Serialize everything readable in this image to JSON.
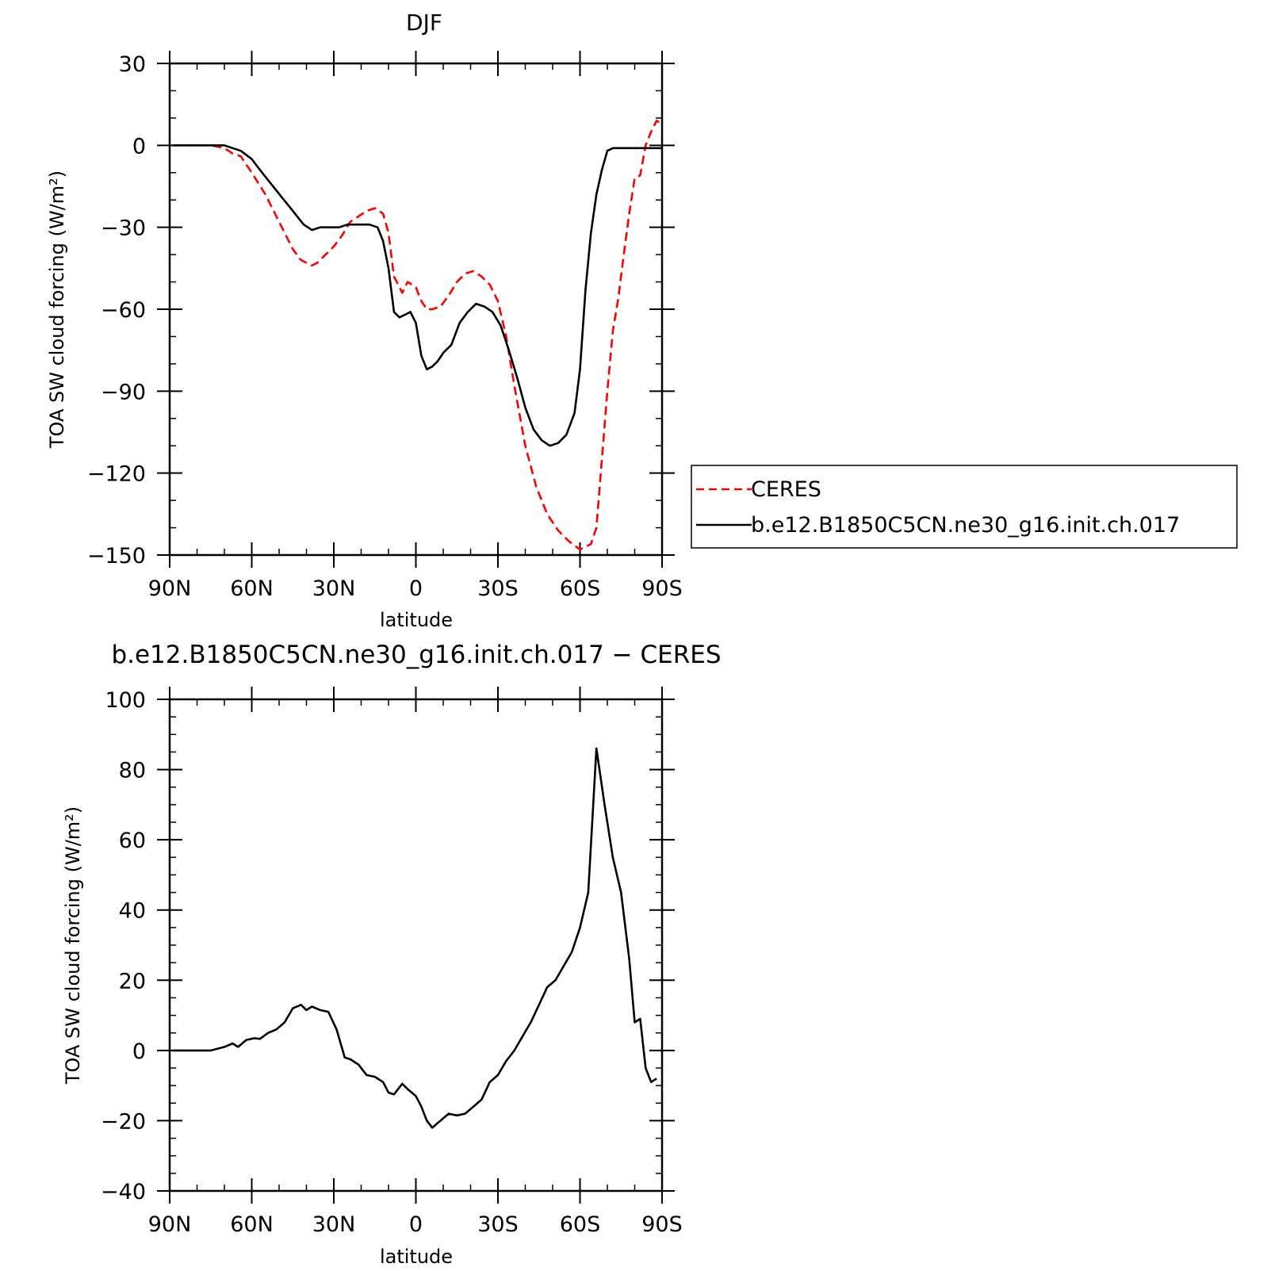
{
  "chart_data": [
    {
      "type": "line",
      "title": "DJF",
      "xlabel": "latitude",
      "ylabel": "TOA SW cloud forcing (W/m²)",
      "xlim": [
        90,
        -90
      ],
      "ylim": [
        -150,
        30
      ],
      "yticks": [
        30,
        0,
        -30,
        -60,
        -90,
        -120,
        -150
      ],
      "xticks": [
        90,
        60,
        30,
        0,
        -30,
        -60,
        -90
      ],
      "xticklabels": [
        "90N",
        "60N",
        "30N",
        "0",
        "30S",
        "60S",
        "90S"
      ],
      "legend": {
        "placement": "right",
        "entries": [
          "CERES",
          "b.e12.B1850C5CN.ne30_g16.init.ch.017"
        ]
      },
      "series": [
        {
          "name": "CERES",
          "color": "#ff0000",
          "style": "dashed",
          "x": [
            89,
            85,
            80,
            75,
            70,
            67,
            64,
            60,
            55,
            50,
            45,
            42,
            38,
            36,
            33,
            30,
            27,
            24,
            21,
            18,
            15,
            12,
            10,
            8,
            5,
            3,
            0,
            -2,
            -4,
            -6,
            -9,
            -12,
            -15,
            -18,
            -21,
            -24,
            -27,
            -30,
            -33,
            -36,
            -40,
            -44,
            -48,
            -52,
            -56,
            -60,
            -64,
            -66,
            -68,
            -70,
            -72,
            -74,
            -76,
            -78,
            -80,
            -82,
            -84,
            -86,
            -88,
            -90
          ],
          "y": [
            0,
            0,
            0,
            0,
            -1,
            -3,
            -4,
            -10,
            -18,
            -28,
            -38,
            -42,
            -44,
            -43,
            -40,
            -37,
            -33,
            -28,
            -26,
            -24,
            -23,
            -25,
            -32,
            -48,
            -54,
            -50,
            -52,
            -57,
            -60,
            -60,
            -59,
            -55,
            -50,
            -47,
            -46,
            -48,
            -51,
            -57,
            -70,
            -88,
            -110,
            -125,
            -135,
            -141,
            -145,
            -148,
            -146,
            -140,
            -115,
            -90,
            -68,
            -56,
            -40,
            -25,
            -12,
            -11,
            0,
            5,
            9,
            8
          ]
        },
        {
          "name": "b.e12.B1850C5CN.ne30_g16.init.ch.017",
          "color": "#000000",
          "style": "solid",
          "x": [
            89,
            85,
            80,
            75,
            70,
            67,
            64,
            60,
            57,
            53,
            49,
            45,
            41,
            38,
            35,
            32,
            28,
            25,
            22,
            20,
            17,
            14,
            12,
            10,
            8,
            6,
            4,
            2,
            0,
            -2,
            -4,
            -6,
            -8,
            -10,
            -13,
            -16,
            -19,
            -22,
            -25,
            -28,
            -31,
            -34,
            -37,
            -40,
            -43,
            -46,
            -49,
            -52,
            -55,
            -58,
            -60,
            -62,
            -64,
            -66,
            -68,
            -70,
            -72,
            -74,
            -76,
            -78,
            -80,
            -84,
            -88,
            -90
          ],
          "y": [
            0,
            0,
            0,
            0,
            0,
            -1,
            -2,
            -5,
            -9,
            -14,
            -19,
            -24,
            -29,
            -31,
            -30,
            -30,
            -30,
            -29,
            -29,
            -29,
            -29,
            -30,
            -35,
            -45,
            -61,
            -63,
            -62,
            -61,
            -65,
            -77,
            -82,
            -81,
            -79,
            -76,
            -73,
            -65,
            -61,
            -58,
            -59,
            -61,
            -66,
            -75,
            -85,
            -96,
            -104,
            -108,
            -110,
            -109,
            -106,
            -98,
            -82,
            -53,
            -32,
            -18,
            -9,
            -2,
            -1,
            -1,
            -1,
            -1,
            -1,
            -1,
            -1,
            -1
          ]
        }
      ]
    },
    {
      "type": "line",
      "title": "b.e12.B1850C5CN.ne30_g16.init.ch.017 − CERES",
      "xlabel": "latitude",
      "ylabel": "TOA SW cloud forcing (W/m²)",
      "xlim": [
        90,
        -90
      ],
      "ylim": [
        -40,
        100
      ],
      "yticks": [
        100,
        80,
        60,
        40,
        20,
        0,
        -20,
        -40
      ],
      "xticks": [
        90,
        60,
        30,
        0,
        -30,
        -60,
        -90
      ],
      "xticklabels": [
        "90N",
        "60N",
        "30N",
        "0",
        "30S",
        "60S",
        "90S"
      ],
      "series": [
        {
          "color": "#000000",
          "style": "solid",
          "x": [
            89,
            85,
            80,
            75,
            70,
            67,
            65,
            62,
            59,
            57,
            54,
            51,
            48,
            45,
            42,
            40,
            38,
            35,
            32,
            29,
            26,
            24,
            21,
            18,
            15,
            12,
            10,
            8,
            5,
            3,
            0,
            -2,
            -4,
            -6,
            -9,
            -12,
            -15,
            -18,
            -21,
            -24,
            -27,
            -30,
            -33,
            -36,
            -39,
            -42,
            -45,
            -48,
            -51,
            -54,
            -57,
            -60,
            -63,
            -66,
            -69,
            -72,
            -75,
            -78,
            -80,
            -82,
            -84,
            -86,
            -88
          ],
          "y": [
            0,
            0,
            0,
            0,
            1,
            2,
            1,
            3,
            3.5,
            3.3,
            5,
            6,
            8,
            12,
            13,
            11.5,
            12.5,
            11.5,
            11,
            6,
            -2,
            -2.5,
            -4,
            -7,
            -7.5,
            -9,
            -12,
            -12.5,
            -9.5,
            -11,
            -13,
            -16,
            -20,
            -22,
            -20,
            -18,
            -18.5,
            -18,
            -16,
            -14,
            -9,
            -7,
            -3,
            0,
            4,
            8,
            13,
            18,
            20,
            24,
            28,
            35,
            45,
            86,
            70,
            55,
            45,
            26,
            8,
            9,
            -5,
            -9,
            -8
          ]
        }
      ]
    }
  ]
}
